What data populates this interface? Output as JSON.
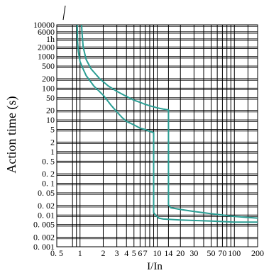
{
  "chart_data": {
    "type": "line",
    "title": "",
    "xlabel": "I/In",
    "ylabel": "Action time (s)",
    "x_scale": "log",
    "y_scale": "log",
    "xlim": [
      0.5,
      200
    ],
    "ylim": [
      0.001,
      10000
    ],
    "grid": true,
    "legend": "none",
    "colors": {
      "curve": "#2a9d93",
      "grid": "#000000",
      "text": "#000000"
    },
    "x_ticks": [
      {
        "value": 0.5,
        "label": "0. 5"
      },
      {
        "value": 1,
        "label": "1"
      },
      {
        "value": 2,
        "label": "2"
      },
      {
        "value": 3,
        "label": "3"
      },
      {
        "value": 4,
        "label": "4"
      },
      {
        "value": 5,
        "label": "5"
      },
      {
        "value": 6,
        "label": "6"
      },
      {
        "value": 7,
        "label": "7"
      },
      {
        "value": 10,
        "label": "10"
      },
      {
        "value": 14,
        "label": "14"
      },
      {
        "value": 20,
        "label": "20"
      },
      {
        "value": 30,
        "label": "30"
      },
      {
        "value": 50,
        "label": "50"
      },
      {
        "value": 70,
        "label": "70"
      },
      {
        "value": 100,
        "label": "100"
      },
      {
        "value": 200,
        "label": "200"
      }
    ],
    "y_ticks": [
      {
        "value": 10000,
        "label": "10000"
      },
      {
        "value": 6000,
        "label": "6000"
      },
      {
        "value": 3600,
        "label": "1h"
      },
      {
        "value": 2000,
        "label": "2000"
      },
      {
        "value": 1000,
        "label": "1000"
      },
      {
        "value": 500,
        "label": "500"
      },
      {
        "value": 200,
        "label": "200"
      },
      {
        "value": 100,
        "label": "100"
      },
      {
        "value": 50,
        "label": "50"
      },
      {
        "value": 20,
        "label": "20"
      },
      {
        "value": 10,
        "label": "10"
      },
      {
        "value": 5,
        "label": "5"
      },
      {
        "value": 2,
        "label": "2"
      },
      {
        "value": 1,
        "label": "1"
      },
      {
        "value": 0.5,
        "label": "0. 5"
      },
      {
        "value": 0.2,
        "label": "0. 2"
      },
      {
        "value": 0.1,
        "label": "0. 1"
      },
      {
        "value": 0.05,
        "label": "0. 05"
      },
      {
        "value": 0.02,
        "label": "0. 02"
      },
      {
        "value": 0.01,
        "label": "0. 01"
      },
      {
        "value": 0.005,
        "label": "0. 005"
      },
      {
        "value": 0.002,
        "label": "0. 002"
      },
      {
        "value": 0.001,
        "label": "0. 001"
      }
    ],
    "series": [
      {
        "points": [
          [
            1.05,
            10000
          ],
          [
            1.06,
            6000
          ],
          [
            1.1,
            2000
          ],
          [
            1.2,
            800
          ],
          [
            1.4,
            400
          ],
          [
            1.8,
            200
          ],
          [
            2.3,
            120
          ],
          [
            3,
            80
          ],
          [
            4,
            55
          ],
          [
            5,
            42
          ],
          [
            6,
            36
          ],
          [
            7,
            31
          ],
          [
            8.5,
            27
          ],
          [
            10,
            24
          ],
          [
            12,
            22
          ],
          [
            13.5,
            21
          ],
          [
            14,
            21
          ],
          [
            14,
            0.021
          ],
          [
            15,
            0.017
          ],
          [
            20,
            0.015
          ],
          [
            30,
            0.013
          ],
          [
            50,
            0.011
          ],
          [
            70,
            0.01
          ],
          [
            100,
            0.009
          ],
          [
            200,
            0.008
          ]
        ]
      },
      {
        "points": [
          [
            0.92,
            10000
          ],
          [
            0.93,
            3000
          ],
          [
            0.95,
            1500
          ],
          [
            1,
            700
          ],
          [
            1.1,
            400
          ],
          [
            1.2,
            250
          ],
          [
            1.5,
            120
          ],
          [
            2,
            60
          ],
          [
            2.5,
            30
          ],
          [
            3,
            18
          ],
          [
            3.5,
            12
          ],
          [
            4,
            9
          ],
          [
            5,
            7
          ],
          [
            6,
            5.5
          ],
          [
            7,
            5
          ],
          [
            8,
            4.3
          ],
          [
            9,
            4
          ],
          [
            9,
            0.012
          ],
          [
            9.5,
            0.01
          ],
          [
            10.5,
            0.008
          ],
          [
            12,
            0.0075
          ],
          [
            20,
            0.007
          ],
          [
            50,
            0.0065
          ],
          [
            100,
            0.006
          ],
          [
            200,
            0.006
          ]
        ]
      }
    ]
  }
}
